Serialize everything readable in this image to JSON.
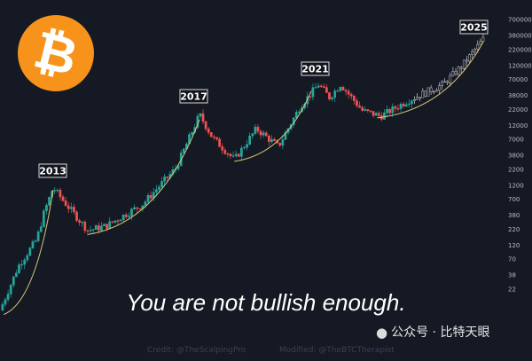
{
  "chart_data": {
    "type": "candlestick",
    "title": "",
    "yscale": "log",
    "ylim": [
      8,
      800000
    ],
    "grid": false,
    "y_ticks": [
      700000,
      380000,
      220000,
      120000,
      70000,
      38000,
      22000,
      12000,
      7000,
      3800,
      2200,
      1200,
      700,
      380,
      220,
      120,
      70,
      38,
      22
    ],
    "cycle_labels": [
      "2013",
      "2017",
      "2021",
      "2025"
    ],
    "price_path": [
      [
        2012.3,
        9.7
      ],
      [
        2012.8,
        53
      ],
      [
        2013.3,
        148
      ],
      [
        2013.5,
        412
      ],
      [
        2013.75,
        1090
      ],
      [
        2014.1,
        580
      ],
      [
        2014.7,
        210
      ],
      [
        2015.2,
        250
      ],
      [
        2016.2,
        580
      ],
      [
        2017.1,
        2300
      ],
      [
        2017.75,
        18000
      ],
      [
        2018.1,
        7500
      ],
      [
        2018.7,
        3200
      ],
      [
        2019.3,
        10500
      ],
      [
        2019.9,
        5300
      ],
      [
        2020.5,
        25000
      ],
      [
        2021.0,
        58000
      ],
      [
        2021.3,
        35000
      ],
      [
        2021.6,
        58000
      ],
      [
        2022.2,
        21000
      ],
      [
        2022.7,
        17000
      ],
      [
        2023.4,
        30000
      ],
      [
        2024.4,
        58000
      ],
      [
        2024.9,
        115000
      ],
      [
        2025.5,
        330000
      ]
    ],
    "support_curves": [
      [
        [
          2012.4,
          8.3
        ],
        [
          2013.75,
          1000
        ]
      ],
      [
        [
          2014.7,
          180
        ],
        [
          2017.75,
          15000
        ]
      ],
      [
        [
          2018.7,
          3000
        ],
        [
          2020.8,
          45000
        ]
      ],
      [
        [
          2022.6,
          16000
        ],
        [
          2025.5,
          300000
        ]
      ]
    ],
    "colors": {
      "up": "#26a69a",
      "down": "#ef5350",
      "late": "#c8c8c8",
      "curve": "#d9c77a",
      "background": "#151924"
    }
  },
  "logo": {
    "symbol": "₿",
    "color": "#f7931a"
  },
  "caption": "You are not bullish enough.",
  "credit": "Credit: @TheScalpingPro",
  "modified": "Modified: @TheBTCTherapist",
  "watermark": "公众号 · 比特天眼"
}
